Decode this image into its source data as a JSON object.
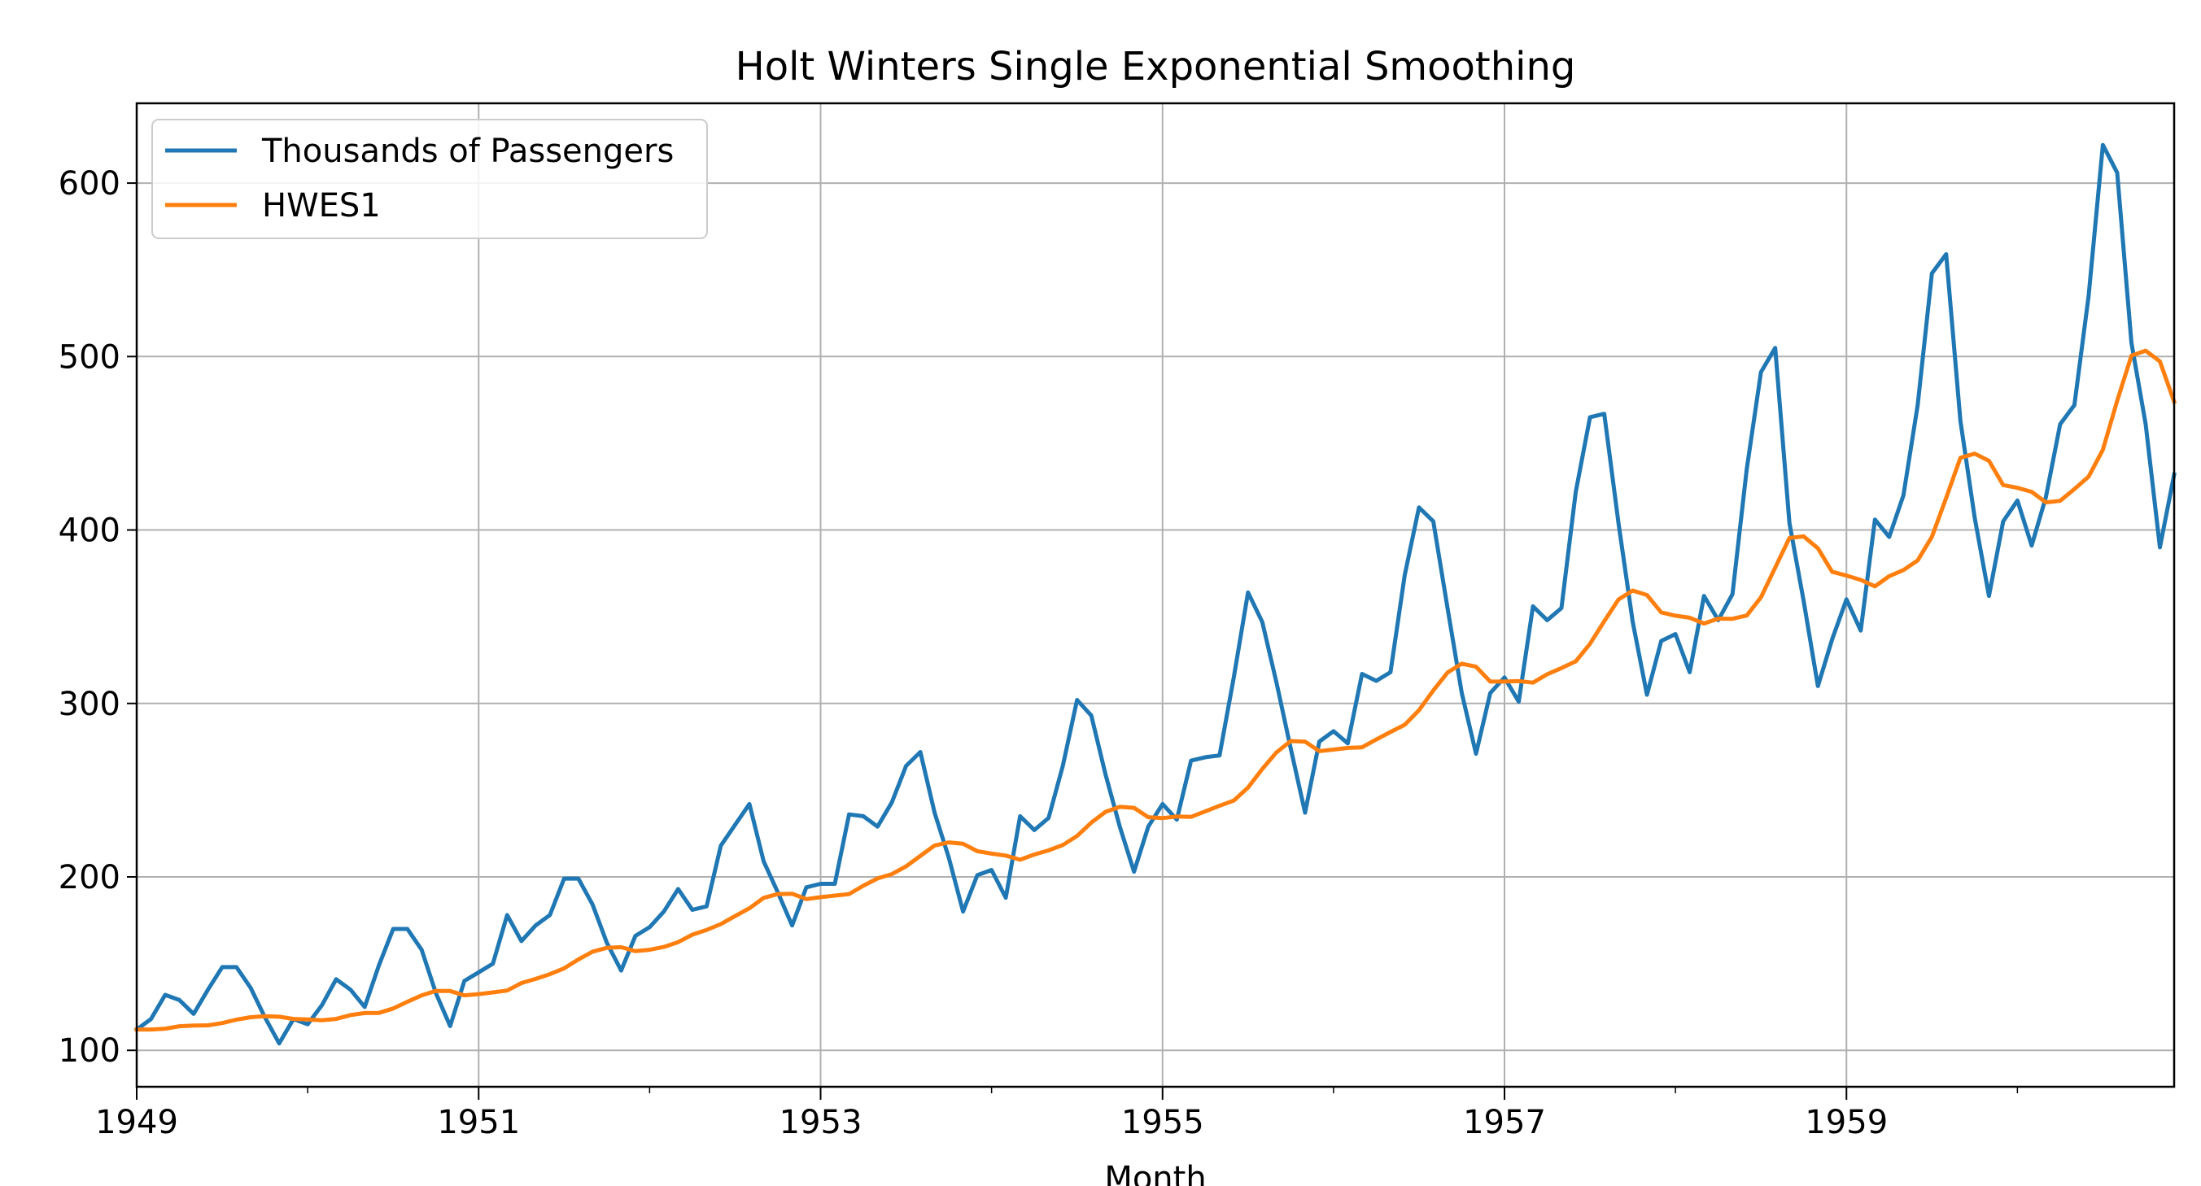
{
  "chart_data": {
    "type": "line",
    "title": "Holt Winters Single Exponential Smoothing",
    "xlabel": "Month",
    "ylabel": "",
    "x_ticks": [
      "1949",
      "1951",
      "1953",
      "1955",
      "1957",
      "1959"
    ],
    "y_ticks": [
      100,
      200,
      300,
      400,
      500,
      600
    ],
    "xlim": [
      "1949-01",
      "1960-12"
    ],
    "ylim": [
      79,
      646
    ],
    "grid": true,
    "legend_position": "top-left",
    "x_start": "1949-01",
    "x_frequency": "monthly",
    "series": [
      {
        "name": "Thousands of Passengers",
        "color": "#1f77b4",
        "values": [
          112,
          118,
          132,
          129,
          121,
          135,
          148,
          148,
          136,
          119,
          104,
          118,
          115,
          126,
          141,
          135,
          125,
          149,
          170,
          170,
          158,
          133,
          114,
          140,
          145,
          150,
          178,
          163,
          172,
          178,
          199,
          199,
          184,
          162,
          146,
          166,
          171,
          180,
          193,
          181,
          183,
          218,
          230,
          242,
          209,
          191,
          172,
          194,
          196,
          196,
          236,
          235,
          229,
          243,
          264,
          272,
          237,
          211,
          180,
          201,
          204,
          188,
          235,
          227,
          234,
          264,
          302,
          293,
          259,
          229,
          203,
          229,
          242,
          233,
          267,
          269,
          270,
          315,
          364,
          347,
          312,
          274,
          237,
          278,
          284,
          277,
          317,
          313,
          318,
          374,
          413,
          405,
          355,
          306,
          271,
          306,
          315,
          301,
          356,
          348,
          355,
          422,
          465,
          467,
          404,
          347,
          305,
          336,
          340,
          318,
          362,
          348,
          363,
          435,
          491,
          505,
          404,
          359,
          310,
          337,
          360,
          342,
          406,
          396,
          420,
          472,
          548,
          559,
          463,
          407,
          362,
          405,
          417,
          391,
          419,
          461,
          472,
          535,
          622,
          606,
          508,
          461,
          390,
          432
        ]
      },
      {
        "name": "HWES1",
        "color": "#ff7f0e",
        "values": [
          112.0,
          112.0,
          112.5,
          113.9,
          114.3,
          114.4,
          115.7,
          117.7,
          119.1,
          119.7,
          119.4,
          118.1,
          117.8,
          117.3,
          118.1,
          120.3,
          121.5,
          121.6,
          124.1,
          128.0,
          131.7,
          134.3,
          134.2,
          131.7,
          132.4,
          133.4,
          134.5,
          138.8,
          141.2,
          143.9,
          147.3,
          152.4,
          156.9,
          159.1,
          159.5,
          157.2,
          158.0,
          159.6,
          162.4,
          166.7,
          169.4,
          172.8,
          177.4,
          181.9,
          187.9,
          190.1,
          190.3,
          187.2,
          188.3,
          189.2,
          190.1,
          194.9,
          199.1,
          201.6,
          206.1,
          212.1,
          218.1,
          219.9,
          219.1,
          214.8,
          213.4,
          212.3,
          209.9,
          212.9,
          215.3,
          218.4,
          223.6,
          231.3,
          237.5,
          240.4,
          239.8,
          234.4,
          233.9,
          234.8,
          234.6,
          237.8,
          241.0,
          244.0,
          251.5,
          262.2,
          271.8,
          278.3,
          278.0,
          272.5,
          273.4,
          274.4,
          274.7,
          279.2,
          283.5,
          287.7,
          296.1,
          307.5,
          317.8,
          322.9,
          321.2,
          312.6,
          312.6,
          312.9,
          312.0,
          316.8,
          320.4,
          324.3,
          334.4,
          347.4,
          359.9,
          365.1,
          362.5,
          352.5,
          350.6,
          349.4,
          346.1,
          348.9,
          348.8,
          350.7,
          361.2,
          378.3,
          395.4,
          396.3,
          389.4,
          375.9,
          373.7,
          371.2,
          367.5,
          373.4,
          376.9,
          382.5,
          396.1,
          418.5,
          441.6,
          444.0,
          439.9,
          425.9,
          424.3,
          422.0,
          415.9,
          416.8,
          423.6,
          430.8,
          446.3,
          474.5,
          500.5,
          503.4,
          497.2,
          474.0
        ]
      }
    ]
  }
}
